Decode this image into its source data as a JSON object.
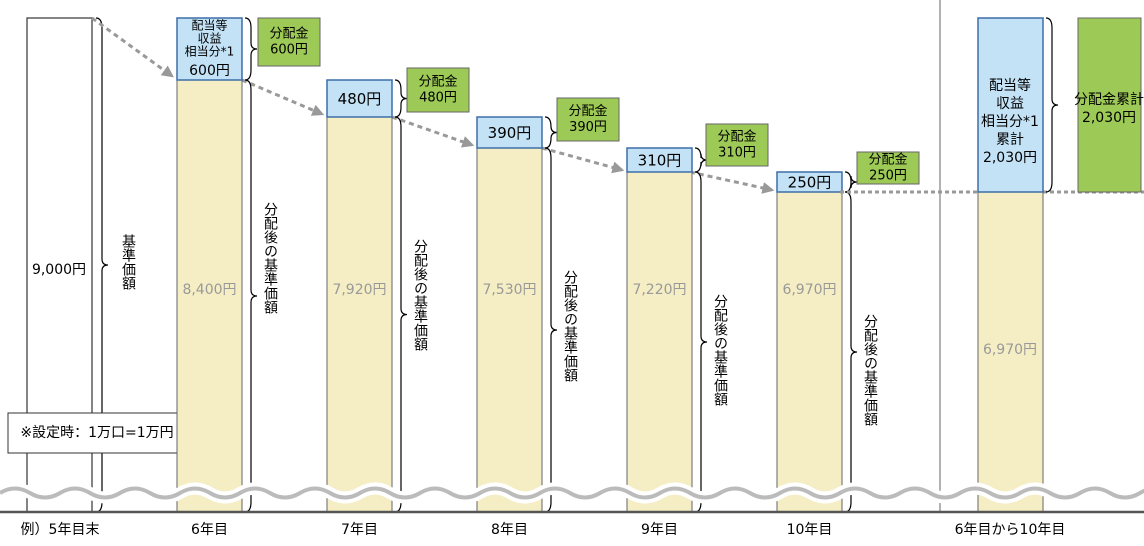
{
  "note": "※設定時：1万口=1万円",
  "base": {
    "category": "例）5年目末",
    "value_label": "9,000円",
    "label": "基準価額"
  },
  "income_note": [
    "配当等",
    "収益",
    "相当分*1"
  ],
  "distribution_label": "分配金",
  "after_label": "分配後の基準価額",
  "years": [
    {
      "category": "6年目",
      "income": "600円",
      "distribution": "600円",
      "after": "8,400円"
    },
    {
      "category": "7年目",
      "income": "480円",
      "distribution": "480円",
      "after": "7,920円"
    },
    {
      "category": "8年目",
      "income": "390円",
      "distribution": "390円",
      "after": "7,530円"
    },
    {
      "category": "9年目",
      "income": "310円",
      "distribution": "310円",
      "after": "7,220円"
    },
    {
      "category": "10年目",
      "income": "250円",
      "distribution": "250円",
      "after": "6,970円"
    }
  ],
  "total": {
    "category": "6年目から10年目",
    "income_label": "累計",
    "income": "2,030円",
    "distribution_label": "分配金累計",
    "distribution": "2,030円",
    "after": "6,970円"
  }
}
